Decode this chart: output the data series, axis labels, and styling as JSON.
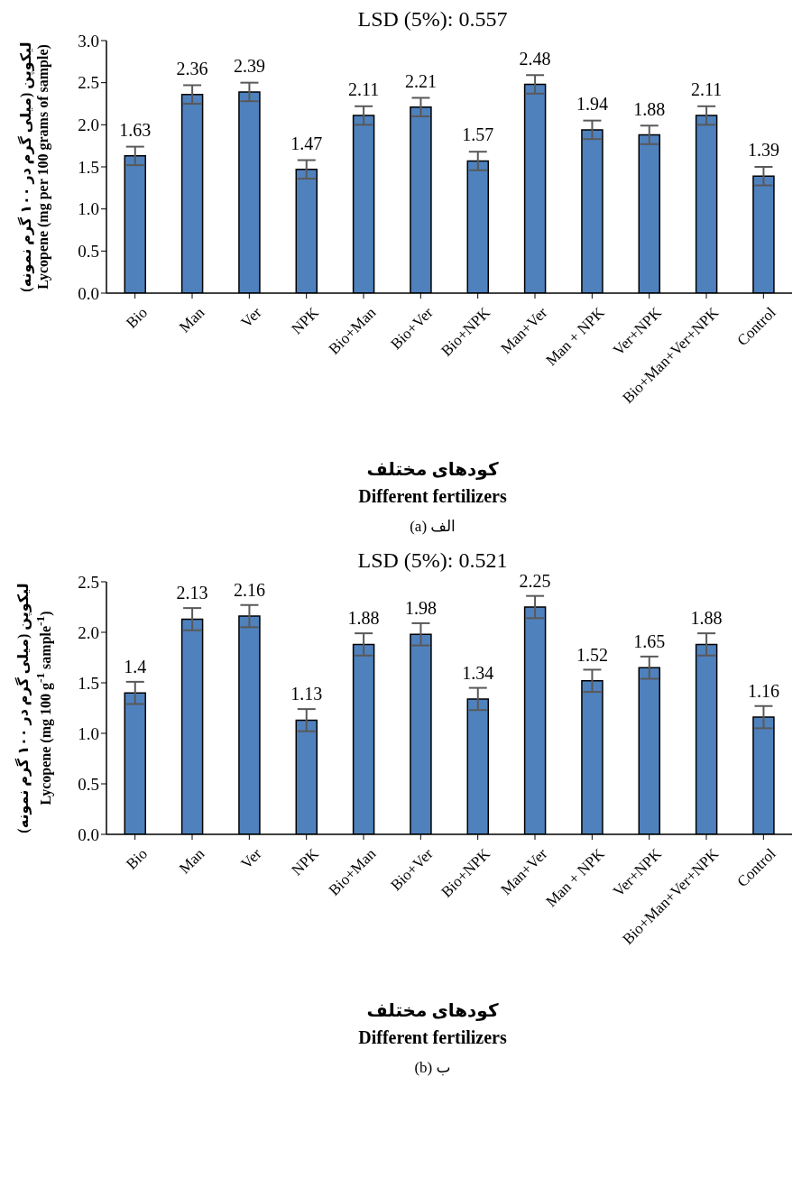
{
  "chart_data": [
    {
      "type": "bar",
      "title": "LSD (5%): 0.557",
      "xlabel": "کودهای مختلف\nDifferent fertilizers",
      "ylabel": "لیکوپن (میلی گرم در ۱۰۰ گرم نمونه)\nLycopene (mg per 100 grams of sample)",
      "categories": [
        "Bio",
        "Man",
        "Ver",
        "NPK",
        "Bio+Man",
        "Bio+Ver",
        "Bio+NPK",
        "Man+Ver",
        "Man + NPK",
        "Ver+NPK",
        "Bio+Man+Ver+NPK",
        "Control"
      ],
      "values": [
        1.63,
        2.36,
        2.39,
        1.47,
        2.11,
        2.21,
        1.57,
        2.48,
        1.94,
        1.88,
        2.11,
        1.39
      ],
      "errors": [
        0.11,
        0.11,
        0.11,
        0.11,
        0.11,
        0.11,
        0.11,
        0.11,
        0.11,
        0.11,
        0.11,
        0.11
      ],
      "color": "#4f81bd",
      "ylim": [
        0,
        3
      ],
      "yticks": [
        {
          "value": 0,
          "label": "0.0"
        },
        {
          "value": 0.5,
          "label": "0.5"
        },
        {
          "value": 1,
          "label": "1.0"
        },
        {
          "value": 1.5,
          "label": "1.5"
        },
        {
          "value": 2,
          "label": "2.0"
        },
        {
          "value": 2.5,
          "label": "2.5"
        },
        {
          "value": 3,
          "label": "3.0"
        }
      ],
      "data_labels": true,
      "grid": false,
      "legend": false,
      "annotations": [
        "(a)    الف"
      ]
    },
    {
      "type": "bar",
      "title": "LSD (5%): 0.521",
      "xlabel": "کودهای مختلف\nDifferent fertilizers",
      "ylabel": "لیکوپن (میلی گرم در ۱۰۰ گرم نمونه)\nLycopene (mg 100 g$^{-1}$ sample$^{-1}$)",
      "categories": [
        "Bio",
        "Man",
        "Ver",
        "NPK",
        "Bio+Man",
        "Bio+Ver",
        "Bio+NPK",
        "Man+Ver",
        "Man + NPK",
        "Ver+NPK",
        "Bio+Man+Ver+NPK",
        "Control"
      ],
      "values": [
        1.4,
        2.13,
        2.16,
        1.13,
        1.88,
        1.98,
        1.34,
        2.25,
        1.52,
        1.65,
        1.88,
        1.16
      ],
      "errors": [
        0.11,
        0.11,
        0.11,
        0.11,
        0.11,
        0.11,
        0.11,
        0.11,
        0.11,
        0.11,
        0.11,
        0.11
      ],
      "color": "#4f81bd",
      "ylim": [
        0,
        2.5
      ],
      "yticks": [
        {
          "value": 0,
          "label": "0.0"
        },
        {
          "value": 0.5,
          "label": "0.5"
        },
        {
          "value": 1,
          "label": "1.0"
        },
        {
          "value": 1.5,
          "label": "1.5"
        },
        {
          "value": 2,
          "label": "2.0"
        },
        {
          "value": 2.5,
          "label": "2.5"
        }
      ],
      "data_labels": true,
      "grid": false,
      "legend": false,
      "annotations": [
        "(b)  ب"
      ]
    }
  ]
}
